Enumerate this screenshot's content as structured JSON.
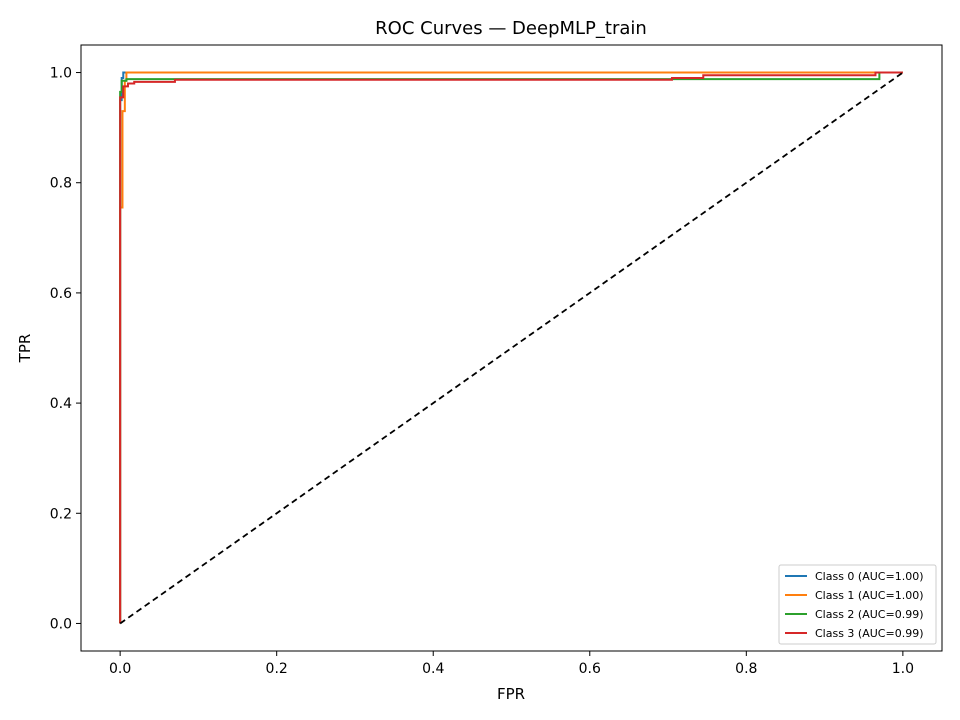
{
  "chart_data": {
    "type": "line",
    "title": "ROC Curves — DeepMLP_train",
    "xlabel": "FPR",
    "ylabel": "TPR",
    "xlim": [
      -0.05,
      1.05
    ],
    "ylim": [
      -0.05,
      1.05
    ],
    "xticks": [
      0.0,
      0.2,
      0.4,
      0.6,
      0.8,
      1.0
    ],
    "xtick_labels": [
      "0.0",
      "0.2",
      "0.4",
      "0.6",
      "0.8",
      "1.0"
    ],
    "yticks": [
      0.0,
      0.2,
      0.4,
      0.6,
      0.8,
      1.0
    ],
    "ytick_labels": [
      "0.0",
      "0.2",
      "0.4",
      "0.6",
      "0.8",
      "1.0"
    ],
    "grid": false,
    "legend_position": "bottom-right",
    "reference_line": {
      "x": [
        0,
        1
      ],
      "y": [
        0,
        1
      ],
      "color": "#000000",
      "style": "dashed"
    },
    "series": [
      {
        "name": "Class 0 (AUC=1.00)",
        "color": "#1f77b4",
        "x": [
          0.0,
          0.0,
          0.002,
          0.002,
          0.004,
          0.004,
          1.0
        ],
        "y": [
          0.0,
          0.95,
          0.95,
          0.99,
          0.99,
          1.0,
          1.0
        ]
      },
      {
        "name": "Class 1 (AUC=1.00)",
        "color": "#ff7f0e",
        "x": [
          0.0,
          0.0,
          0.003,
          0.003,
          0.006,
          0.006,
          0.008,
          0.008,
          1.0
        ],
        "y": [
          0.0,
          0.755,
          0.755,
          0.93,
          0.93,
          0.985,
          0.985,
          1.0,
          1.0
        ]
      },
      {
        "name": "Class 2 (AUC=0.99)",
        "color": "#2ca02c",
        "x": [
          0.0,
          0.0,
          0.002,
          0.002,
          0.008,
          0.008,
          0.97,
          0.97,
          1.0
        ],
        "y": [
          0.0,
          0.965,
          0.965,
          0.985,
          0.985,
          0.988,
          0.988,
          1.0,
          1.0
        ]
      },
      {
        "name": "Class 3 (AUC=0.99)",
        "color": "#d62728",
        "x": [
          0.0,
          0.0,
          0.004,
          0.004,
          0.01,
          0.01,
          0.018,
          0.018,
          0.07,
          0.07,
          0.705,
          0.705,
          0.745,
          0.745,
          0.965,
          0.965,
          1.0
        ],
        "y": [
          0.0,
          0.955,
          0.955,
          0.975,
          0.975,
          0.98,
          0.98,
          0.983,
          0.983,
          0.987,
          0.987,
          0.99,
          0.99,
          0.995,
          0.995,
          1.0,
          1.0
        ]
      }
    ]
  }
}
